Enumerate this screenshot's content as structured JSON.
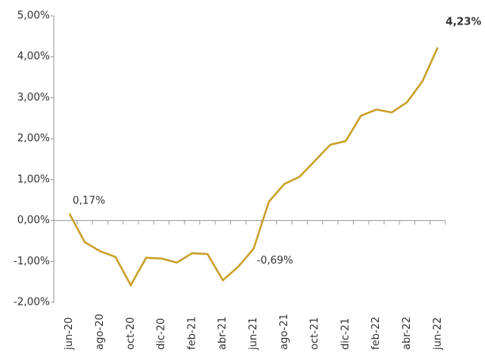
{
  "chart_data": {
    "type": "line",
    "categories": [
      "jun-20",
      null,
      "ago-20",
      null,
      "oct-20",
      null,
      "dic-20",
      null,
      "feb-21",
      null,
      "abr-21",
      null,
      "jun-21",
      null,
      "ago-21",
      null,
      "oct-21",
      null,
      "dic-21",
      null,
      "feb-22",
      null,
      "abr-22",
      null,
      "jun-22"
    ],
    "series": [
      {
        "color": "#c9a02a",
        "values": [
          0.17,
          -0.53,
          -0.75,
          -0.89,
          -1.58,
          -0.91,
          -0.93,
          -1.03,
          -0.8,
          -0.82,
          -1.46,
          -1.13,
          -0.69,
          0.46,
          0.89,
          1.07,
          1.46,
          1.85,
          1.94,
          2.56,
          2.71,
          2.64,
          2.89,
          3.4,
          4.23
        ],
        "value_labels": [
          "0,17%",
          null,
          null,
          null,
          null,
          null,
          null,
          null,
          null,
          null,
          null,
          null,
          "-0,69%",
          null,
          null,
          null,
          null,
          null,
          null,
          null,
          null,
          null,
          null,
          null,
          "4,23%"
        ]
      }
    ],
    "ylim": [
      -2,
      5
    ],
    "yticks": [
      {
        "value": -2,
        "label": "-2,00%"
      },
      {
        "value": -1,
        "label": "-1,00%"
      },
      {
        "value": 0,
        "label": "0,00%"
      },
      {
        "value": 1,
        "label": "1,00%"
      },
      {
        "value": 2,
        "label": "2,00%"
      },
      {
        "value": 3,
        "label": "3,00%"
      },
      {
        "value": 4,
        "label": "4,00%"
      },
      {
        "value": 5,
        "label": "5,00%"
      }
    ]
  }
}
